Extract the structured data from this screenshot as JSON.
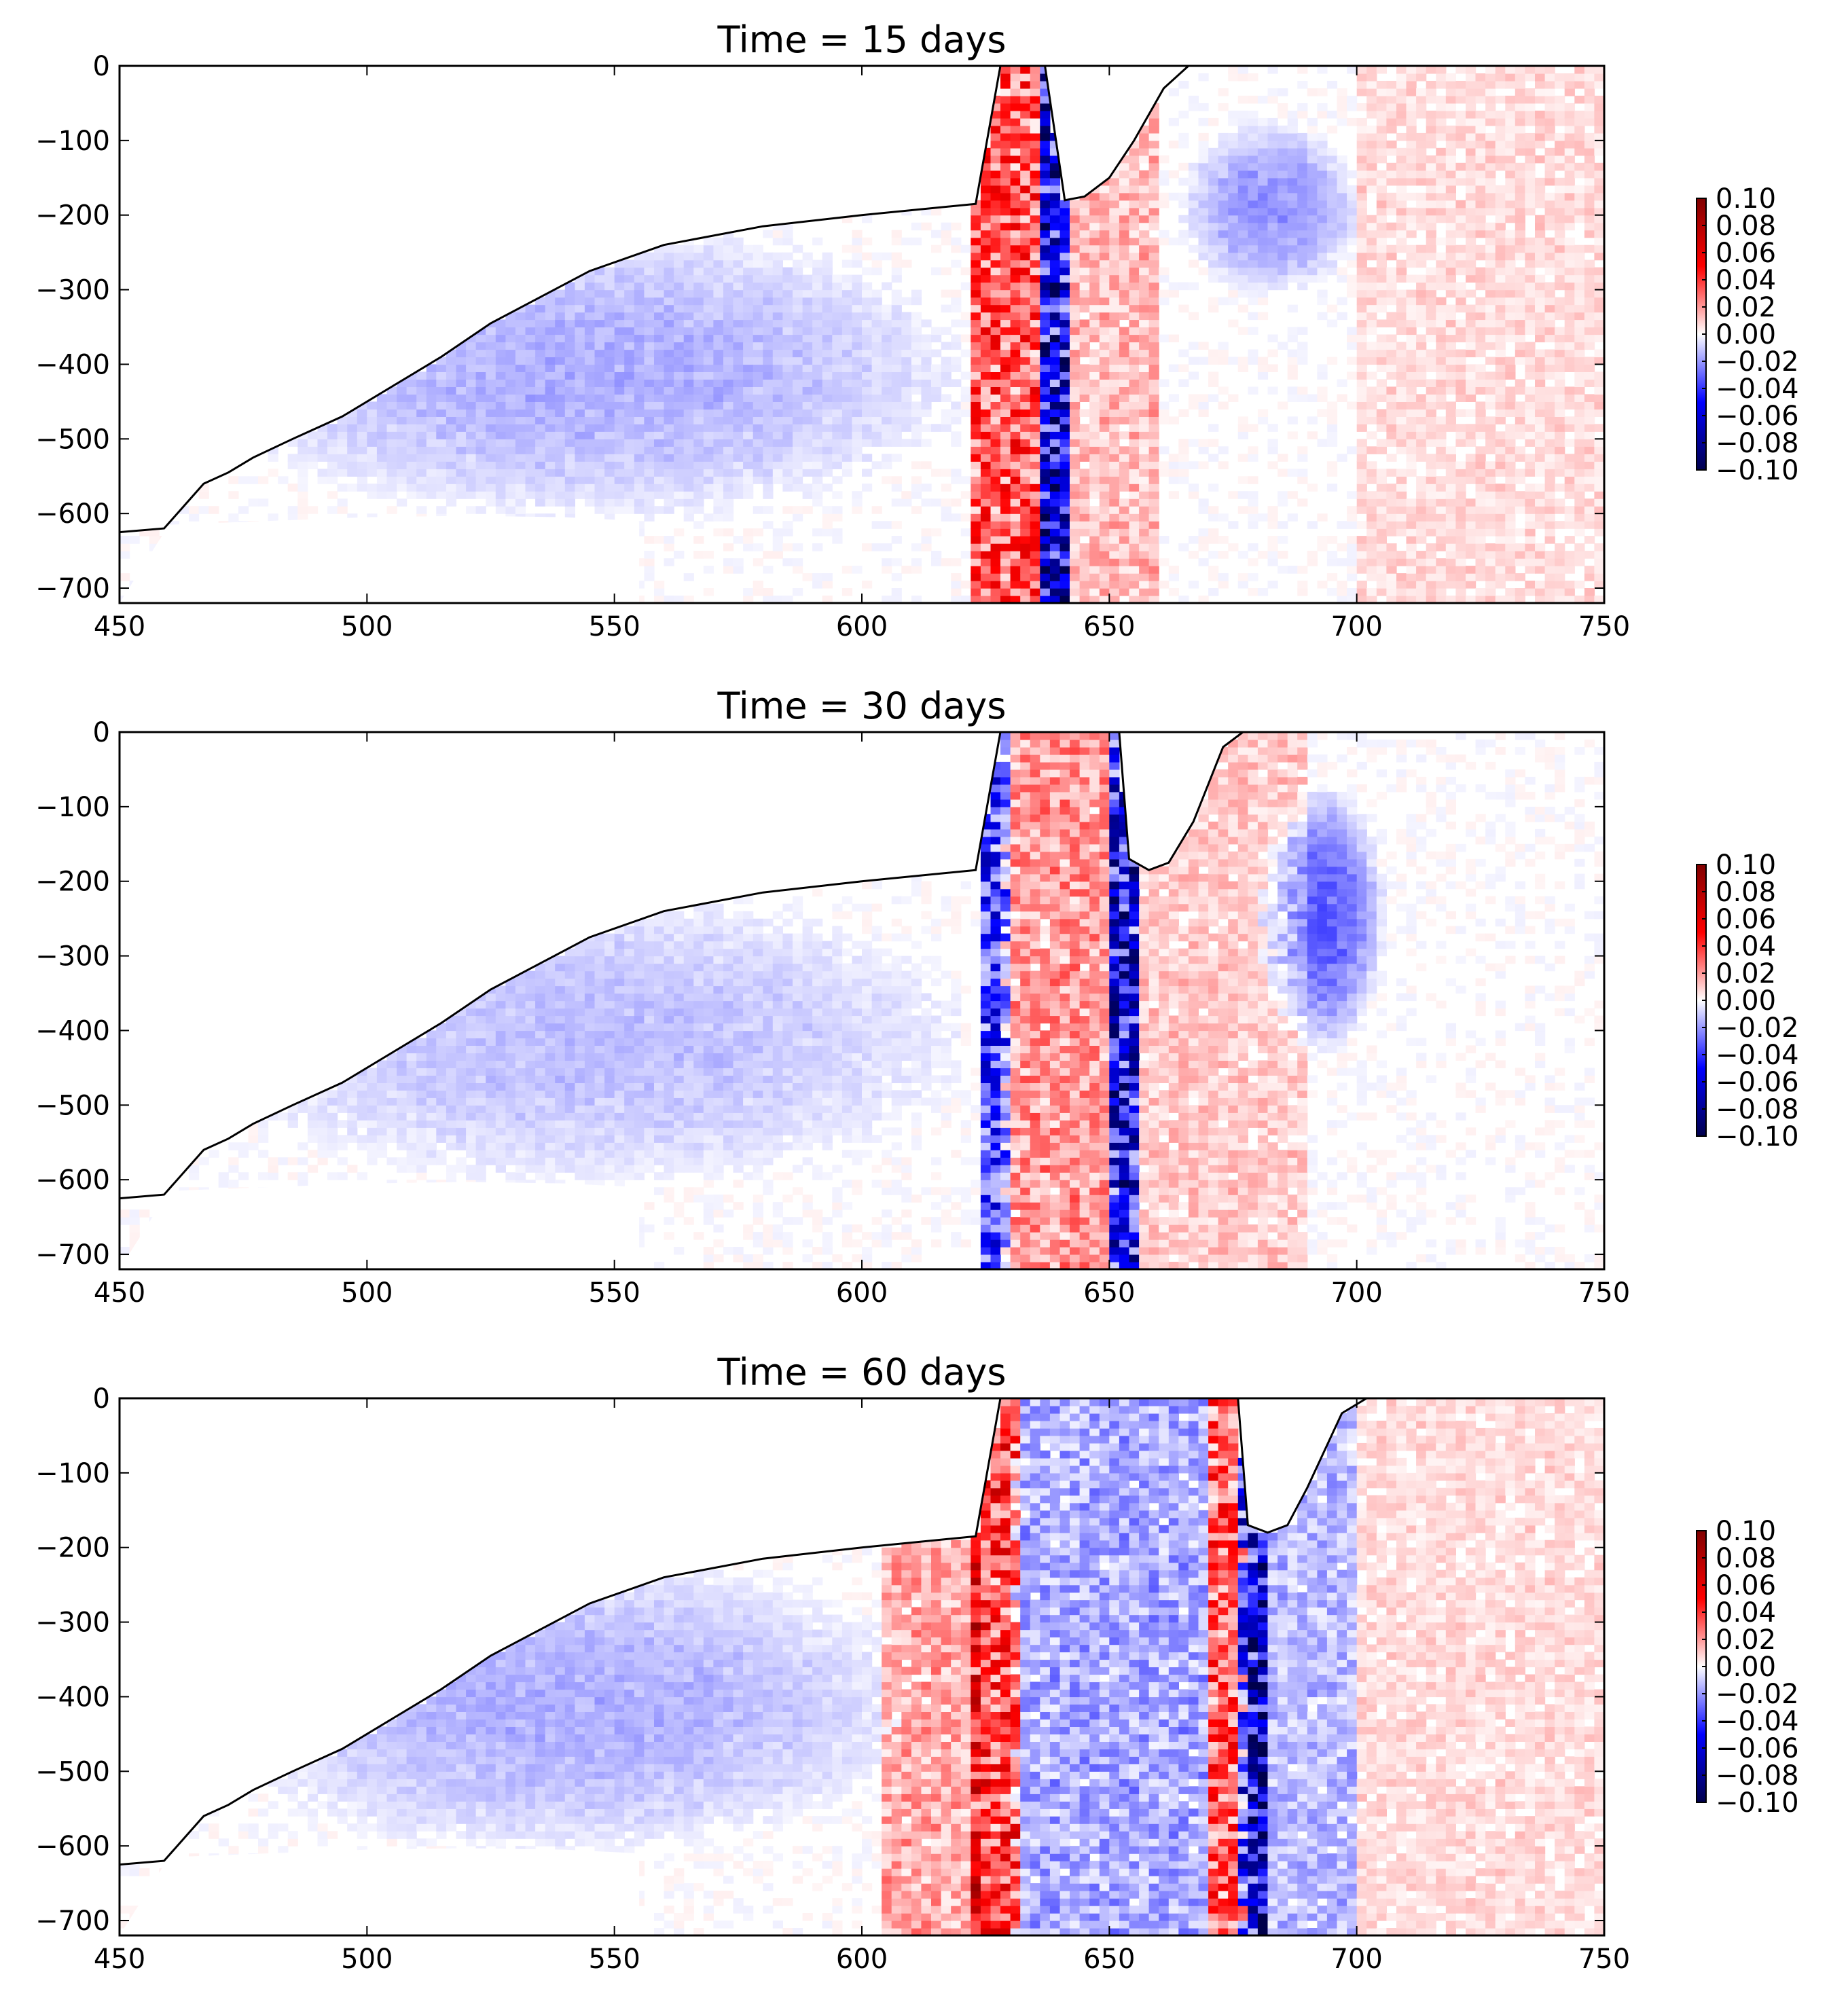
{
  "colors": {
    "positive_max": "#800000",
    "positive_mid": "#ff0000",
    "zero": "#ffffff",
    "negative_mid": "#0000ff",
    "negative_max": "#00004c",
    "outline": "#000000",
    "background": "#ffffff"
  },
  "chart_data": [
    {
      "type": "heatmap",
      "title": "Time = 15 days",
      "xlim": [
        450,
        750
      ],
      "ylim": [
        -720,
        0
      ],
      "xticks": [
        450,
        500,
        550,
        600,
        650,
        700,
        750
      ],
      "yticks": [
        0,
        -100,
        -200,
        -300,
        -400,
        -500,
        -600,
        -700
      ],
      "xlabel": "",
      "ylabel": "",
      "colorbar": {
        "ticks": [
          "0.10",
          "0.08",
          "0.06",
          "0.04",
          "0.02",
          "0.00",
          "−0.02",
          "−0.04",
          "−0.06",
          "−0.08",
          "−0.10"
        ],
        "vmin": -0.1,
        "vmax": 0.1,
        "cmap": "seismic"
      },
      "topography": [
        [
          450,
          -625
        ],
        [
          459,
          -620
        ],
        [
          463,
          -590
        ],
        [
          467,
          -560
        ],
        [
          472,
          -545
        ],
        [
          477,
          -525
        ],
        [
          485,
          -500
        ],
        [
          495,
          -470
        ],
        [
          505,
          -430
        ],
        [
          515,
          -390
        ],
        [
          525,
          -345
        ],
        [
          535,
          -310
        ],
        [
          545,
          -275
        ],
        [
          560,
          -240
        ],
        [
          580,
          -215
        ],
        [
          600,
          -200
        ],
        [
          623,
          -185
        ],
        [
          628,
          0
        ],
        [
          637,
          0
        ],
        [
          641,
          -180
        ],
        [
          645,
          -175
        ],
        [
          650,
          -150
        ],
        [
          655,
          -100
        ],
        [
          661,
          -30
        ],
        [
          666,
          0
        ]
      ],
      "bottom_edge": [
        [
          460,
          -615
        ],
        [
          480,
          -610
        ],
        [
          500,
          -605
        ],
        [
          520,
          -603
        ],
        [
          540,
          -605
        ],
        [
          555,
          -610
        ]
      ],
      "features": [
        {
          "x": [
            622,
            636
          ],
          "amp": 0.05,
          "kind": "band"
        },
        {
          "x": [
            636,
            641
          ],
          "amp": -0.09,
          "kind": "band"
        },
        {
          "x": [
            642,
            660
          ],
          "amp": 0.02,
          "kind": "band"
        },
        {
          "x": [
            665,
            700
          ],
          "y": [
            -300,
            -80
          ],
          "amp": -0.02,
          "kind": "blob"
        },
        {
          "x": [
            700,
            750
          ],
          "amp": 0.01,
          "kind": "band"
        },
        {
          "x": [
            470,
            620
          ],
          "y": [
            -600,
            -220
          ],
          "amp": -0.015,
          "kind": "blob"
        }
      ]
    },
    {
      "type": "heatmap",
      "title": "Time = 30 days",
      "xlim": [
        450,
        750
      ],
      "ylim": [
        -720,
        0
      ],
      "xticks": [
        450,
        500,
        550,
        600,
        650,
        700,
        750
      ],
      "yticks": [
        0,
        -100,
        -200,
        -300,
        -400,
        -500,
        -600,
        -700
      ],
      "xlabel": "",
      "ylabel": "",
      "colorbar": {
        "ticks": [
          "0.10",
          "0.08",
          "0.06",
          "0.04",
          "0.02",
          "0.00",
          "−0.02",
          "−0.04",
          "−0.06",
          "−0.08",
          "−0.10"
        ],
        "vmin": -0.1,
        "vmax": 0.1,
        "cmap": "seismic"
      },
      "topography": [
        [
          450,
          -625
        ],
        [
          459,
          -620
        ],
        [
          463,
          -590
        ],
        [
          467,
          -560
        ],
        [
          472,
          -545
        ],
        [
          477,
          -525
        ],
        [
          485,
          -500
        ],
        [
          495,
          -470
        ],
        [
          505,
          -430
        ],
        [
          515,
          -390
        ],
        [
          525,
          -345
        ],
        [
          535,
          -310
        ],
        [
          545,
          -275
        ],
        [
          560,
          -240
        ],
        [
          580,
          -215
        ],
        [
          600,
          -200
        ],
        [
          623,
          -185
        ],
        [
          628,
          0
        ],
        [
          652,
          0
        ],
        [
          654,
          -170
        ],
        [
          658,
          -185
        ],
        [
          662,
          -175
        ],
        [
          667,
          -120
        ],
        [
          673,
          -20
        ],
        [
          677,
          0
        ]
      ],
      "bottom_edge": [
        [
          460,
          -615
        ],
        [
          480,
          -610
        ],
        [
          500,
          -605
        ],
        [
          520,
          -603
        ],
        [
          540,
          -605
        ],
        [
          555,
          -610
        ]
      ],
      "features": [
        {
          "x": [
            624,
            629
          ],
          "amp": -0.06,
          "kind": "band"
        },
        {
          "x": [
            629,
            650
          ],
          "amp": 0.03,
          "kind": "band"
        },
        {
          "x": [
            650,
            656
          ],
          "amp": -0.08,
          "kind": "band"
        },
        {
          "x": [
            656,
            690
          ],
          "amp": 0.015,
          "kind": "band"
        },
        {
          "x": [
            680,
            705
          ],
          "y": [
            -420,
            -80
          ],
          "amp": -0.03,
          "kind": "blob"
        },
        {
          "x": [
            470,
            620
          ],
          "y": [
            -600,
            -220
          ],
          "amp": -0.012,
          "kind": "blob"
        }
      ]
    },
    {
      "type": "heatmap",
      "title": "Time = 60 days",
      "xlim": [
        450,
        750
      ],
      "ylim": [
        -720,
        0
      ],
      "xticks": [
        450,
        500,
        550,
        600,
        650,
        700,
        750
      ],
      "yticks": [
        0,
        -100,
        -200,
        -300,
        -400,
        -500,
        -600,
        -700
      ],
      "xlabel": "",
      "ylabel": "",
      "colorbar": {
        "ticks": [
          "0.10",
          "0.08",
          "0.06",
          "0.04",
          "0.02",
          "0.00",
          "−0.02",
          "−0.04",
          "−0.06",
          "−0.08",
          "−0.10"
        ],
        "vmin": -0.1,
        "vmax": 0.1,
        "cmap": "seismic"
      },
      "topography": [
        [
          450,
          -625
        ],
        [
          459,
          -620
        ],
        [
          463,
          -590
        ],
        [
          467,
          -560
        ],
        [
          472,
          -545
        ],
        [
          477,
          -525
        ],
        [
          485,
          -500
        ],
        [
          495,
          -470
        ],
        [
          505,
          -430
        ],
        [
          515,
          -390
        ],
        [
          525,
          -345
        ],
        [
          535,
          -310
        ],
        [
          545,
          -275
        ],
        [
          560,
          -240
        ],
        [
          580,
          -215
        ],
        [
          600,
          -200
        ],
        [
          623,
          -185
        ],
        [
          628,
          0
        ],
        [
          676,
          0
        ],
        [
          678,
          -170
        ],
        [
          682,
          -180
        ],
        [
          686,
          -170
        ],
        [
          690,
          -120
        ],
        [
          697,
          -20
        ],
        [
          702,
          0
        ]
      ],
      "bottom_edge": [
        [
          460,
          -615
        ],
        [
          480,
          -610
        ],
        [
          500,
          -605
        ],
        [
          520,
          -603
        ],
        [
          540,
          -605
        ],
        [
          555,
          -610
        ]
      ],
      "features": [
        {
          "x": [
            605,
            623
          ],
          "amp": 0.025,
          "kind": "band"
        },
        {
          "x": [
            623,
            631
          ],
          "amp": 0.06,
          "kind": "band"
        },
        {
          "x": [
            631,
            670
          ],
          "amp": -0.025,
          "kind": "band"
        },
        {
          "x": [
            670,
            677
          ],
          "amp": 0.05,
          "kind": "band"
        },
        {
          "x": [
            677,
            681
          ],
          "amp": -0.09,
          "kind": "band"
        },
        {
          "x": [
            681,
            700
          ],
          "amp": -0.02,
          "kind": "band"
        },
        {
          "x": [
            700,
            750
          ],
          "amp": 0.01,
          "kind": "band"
        },
        {
          "x": [
            470,
            610
          ],
          "y": [
            -600,
            -220
          ],
          "amp": -0.015,
          "kind": "blob"
        }
      ]
    }
  ]
}
